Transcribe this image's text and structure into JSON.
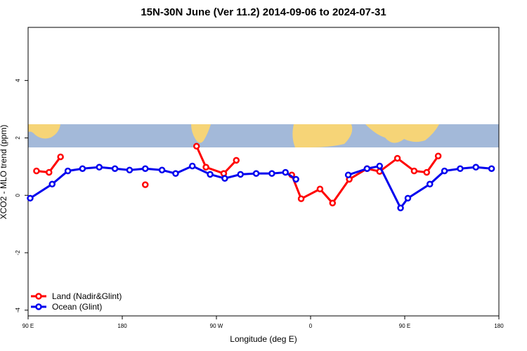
{
  "chart_data": {
    "type": "line",
    "title": "15N-30N June (Ver 11.2)   2014-09-06 to 2024-07-31",
    "xlabel": "Longitude (deg E)",
    "ylabel": "XCO2 - MLO trend (ppm)",
    "xlim": [
      90,
      540
    ],
    "ylim": [
      -4.2,
      5.85
    ],
    "xticks": [
      {
        "value": 90,
        "label": "90 E"
      },
      180,
      {
        "value": 270,
        "label": "90 W"
      },
      {
        "value": 360,
        "label": "0"
      },
      {
        "value": 450,
        "label": "90 E"
      },
      {
        "value": 540,
        "label": "180"
      }
    ],
    "yticks": [
      -4,
      -2,
      0,
      2,
      4
    ],
    "legend": "bottom-left",
    "series": [
      {
        "name": "Land (Nadir&Glint)",
        "color": "#ff0000",
        "x": [
          98,
          110,
          121,
          160,
          202,
          230,
          251,
          260,
          277,
          289,
          320,
          342,
          351,
          369,
          381,
          397,
          414,
          426,
          443,
          459,
          471,
          482
        ],
        "values": [
          0.85,
          0.8,
          1.34,
          null,
          0.37,
          null,
          1.71,
          0.98,
          0.76,
          1.22,
          null,
          0.71,
          -0.12,
          0.22,
          -0.27,
          0.56,
          0.93,
          0.83,
          1.29,
          0.85,
          0.8,
          1.37
        ]
      },
      {
        "name": "Ocean (Glint)",
        "color": "#0000ee",
        "x": [
          92,
          113,
          128,
          142,
          158,
          173,
          187,
          202,
          218,
          231,
          247,
          264,
          278,
          293,
          308,
          323,
          336,
          346,
          370,
          396,
          414,
          426,
          446,
          453,
          474,
          488,
          503,
          518,
          533
        ],
        "values": [
          -0.1,
          0.39,
          0.85,
          0.93,
          0.98,
          0.93,
          0.88,
          0.93,
          0.88,
          0.76,
          1.02,
          0.73,
          0.59,
          0.73,
          0.76,
          0.76,
          0.8,
          0.56,
          null,
          0.71,
          0.93,
          1.02,
          -0.44,
          -0.1,
          0.39,
          0.85,
          0.93,
          0.98,
          0.93
        ]
      }
    ]
  }
}
